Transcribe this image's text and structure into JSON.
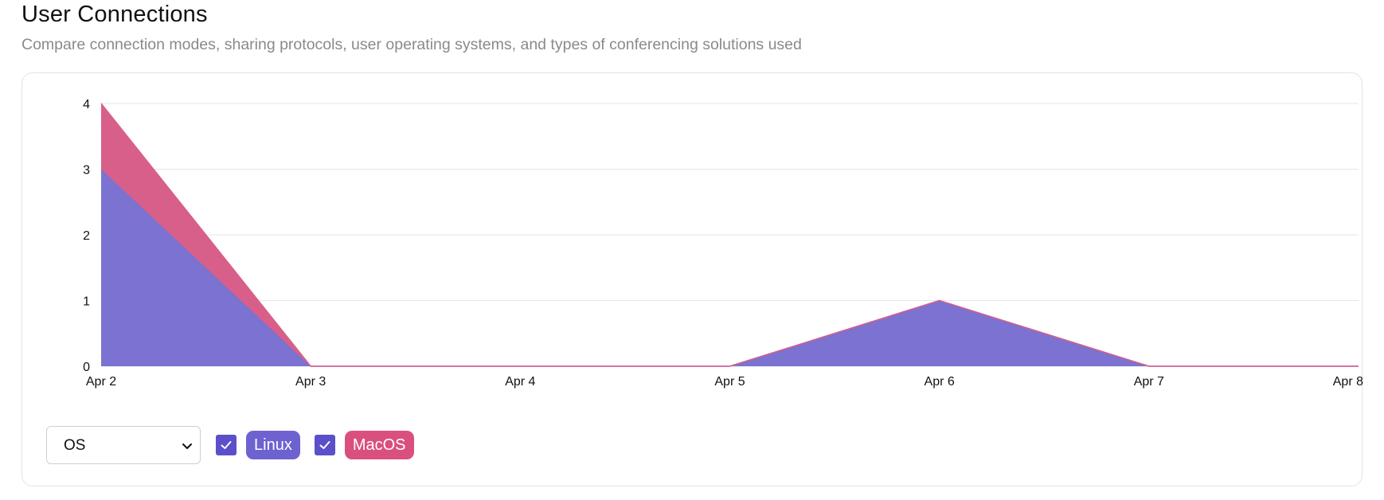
{
  "header": {
    "title": "User Connections",
    "subtitle": "Compare connection modes, sharing protocols, user operating systems, and types of conferencing solutions used"
  },
  "controls": {
    "select_value": "OS",
    "legend": [
      {
        "label": "Linux",
        "checked": true,
        "color": "#6e62d0"
      },
      {
        "label": "MacOS",
        "checked": true,
        "color": "#d9507f"
      }
    ],
    "checkbox_color": "#5b50c9"
  },
  "chart_data": {
    "type": "area",
    "stacked": true,
    "categories": [
      "Apr 2",
      "Apr 3",
      "Apr 4",
      "Apr 5",
      "Apr 6",
      "Apr 7",
      "Apr 8"
    ],
    "series": [
      {
        "name": "Linux",
        "values": [
          3,
          0,
          0,
          0,
          1,
          0,
          0
        ],
        "color": "#7b72d1"
      },
      {
        "name": "MacOS",
        "values": [
          1,
          0,
          0,
          0,
          0,
          0,
          0
        ],
        "color": "#d85f8a"
      }
    ],
    "ylim": [
      0,
      4
    ],
    "yticks": [
      0,
      1,
      2,
      3,
      4
    ],
    "grid": true,
    "title": "",
    "xlabel": "",
    "ylabel": ""
  }
}
